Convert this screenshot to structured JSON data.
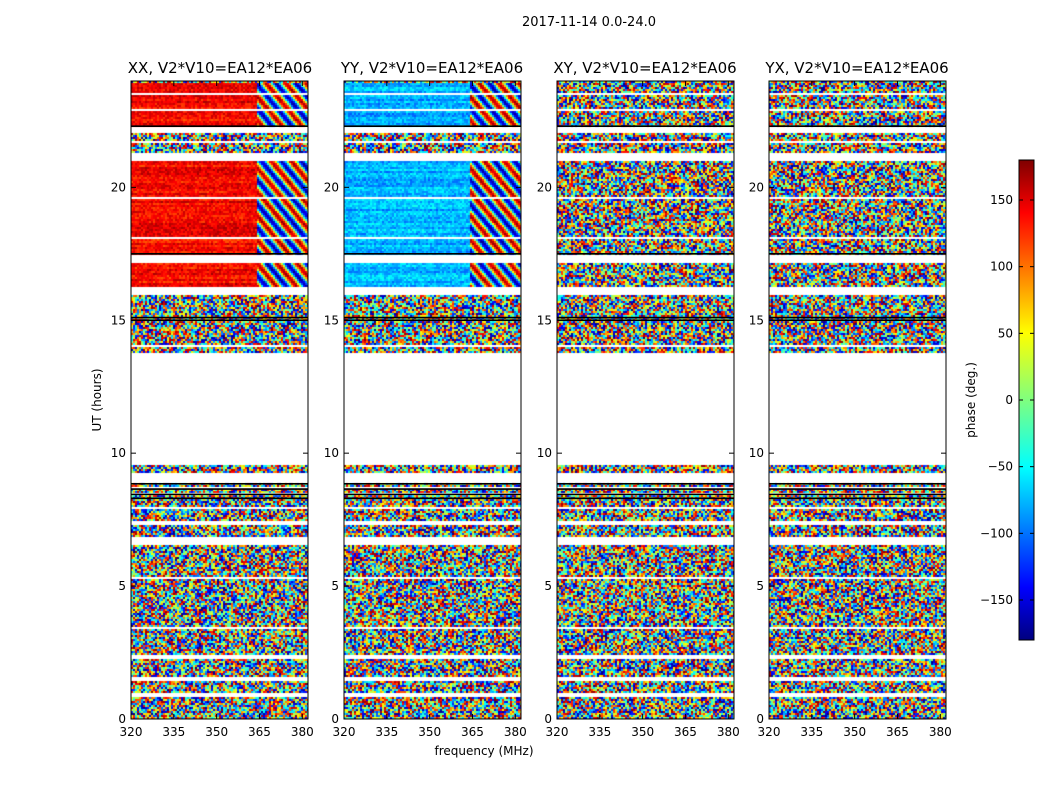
{
  "figure": {
    "suptitle": "2017-11-14 0.0-24.0",
    "xlabel": "frequency (MHz)",
    "ylabel": "UT (hours)"
  },
  "colorbar": {
    "label": "phase (deg.)",
    "range": [
      -180,
      180
    ],
    "ticks": [
      150,
      100,
      50,
      0,
      -50,
      -100,
      -150
    ],
    "tick_labels": [
      "150",
      "100",
      "50",
      "0",
      "−50",
      "−100",
      "−150"
    ],
    "colormap": "jet",
    "colormap_stops": [
      "#00007f",
      "#0000ff",
      "#00ffff",
      "#ffff00",
      "#ff0000",
      "#7f0000"
    ]
  },
  "chart_data": [
    {
      "type": "heatmap",
      "title": "XX, V2*V10=EA12*EA06",
      "x_range": [
        320,
        382
      ],
      "y_range": [
        0,
        24
      ],
      "x_ticks": [
        320,
        335,
        350,
        365,
        380
      ],
      "y_ticks": [
        0,
        5,
        10,
        15,
        20
      ],
      "coherent_ut_ranges": [
        [
          17.5,
          21.0
        ],
        [
          16.3,
          17.2
        ],
        [
          22.3,
          24.0
        ]
      ],
      "coherent_phase_deg": 135,
      "grid": false
    },
    {
      "type": "heatmap",
      "title": "YY, V2*V10=EA12*EA06",
      "x_range": [
        320,
        382
      ],
      "y_range": [
        0,
        24
      ],
      "x_ticks": [
        320,
        335,
        350,
        365,
        380
      ],
      "y_ticks": [
        0,
        5,
        10,
        15,
        20
      ],
      "coherent_ut_ranges": [
        [
          17.5,
          21.0
        ],
        [
          16.3,
          17.2
        ],
        [
          22.3,
          24.0
        ]
      ],
      "coherent_phase_deg": -70,
      "grid": false
    },
    {
      "type": "heatmap",
      "title": "XY, V2*V10=EA12*EA06",
      "x_range": [
        320,
        382
      ],
      "y_range": [
        0,
        24
      ],
      "x_ticks": [
        320,
        335,
        350,
        365,
        380
      ],
      "y_ticks": [
        0,
        5,
        10,
        15,
        20
      ],
      "coherent_ut_ranges": [],
      "grid": false
    },
    {
      "type": "heatmap",
      "title": "YX, V2*V10=EA12*EA06",
      "x_range": [
        320,
        382
      ],
      "y_range": [
        0,
        24
      ],
      "x_ticks": [
        320,
        335,
        350,
        365,
        380
      ],
      "y_ticks": [
        0,
        5,
        10,
        15,
        20
      ],
      "coherent_ut_ranges": [],
      "grid": false
    }
  ],
  "data_gaps_ut": [
    [
      0.9,
      1.0
    ],
    [
      1.5,
      1.65
    ],
    [
      2.3,
      2.45
    ],
    [
      3.4,
      3.5
    ],
    [
      5.3,
      5.4
    ],
    [
      6.6,
      6.9
    ],
    [
      7.35,
      7.5
    ],
    [
      7.9,
      8.0
    ],
    [
      8.5,
      8.55
    ],
    [
      8.7,
      8.75
    ],
    [
      8.95,
      9.3
    ],
    [
      9.6,
      13.8
    ],
    [
      14.0,
      14.1
    ],
    [
      16.0,
      16.3
    ],
    [
      17.2,
      17.5
    ],
    [
      18.1,
      18.2
    ],
    [
      19.6,
      19.7
    ],
    [
      21.0,
      21.3
    ],
    [
      21.7,
      21.8
    ],
    [
      22.1,
      22.3
    ],
    [
      22.9,
      23.0
    ],
    [
      23.5,
      23.6
    ]
  ],
  "flag_lines_ut": [
    8.3,
    8.45,
    8.65,
    8.85,
    15.0,
    15.1,
    17.5,
    22.3
  ]
}
